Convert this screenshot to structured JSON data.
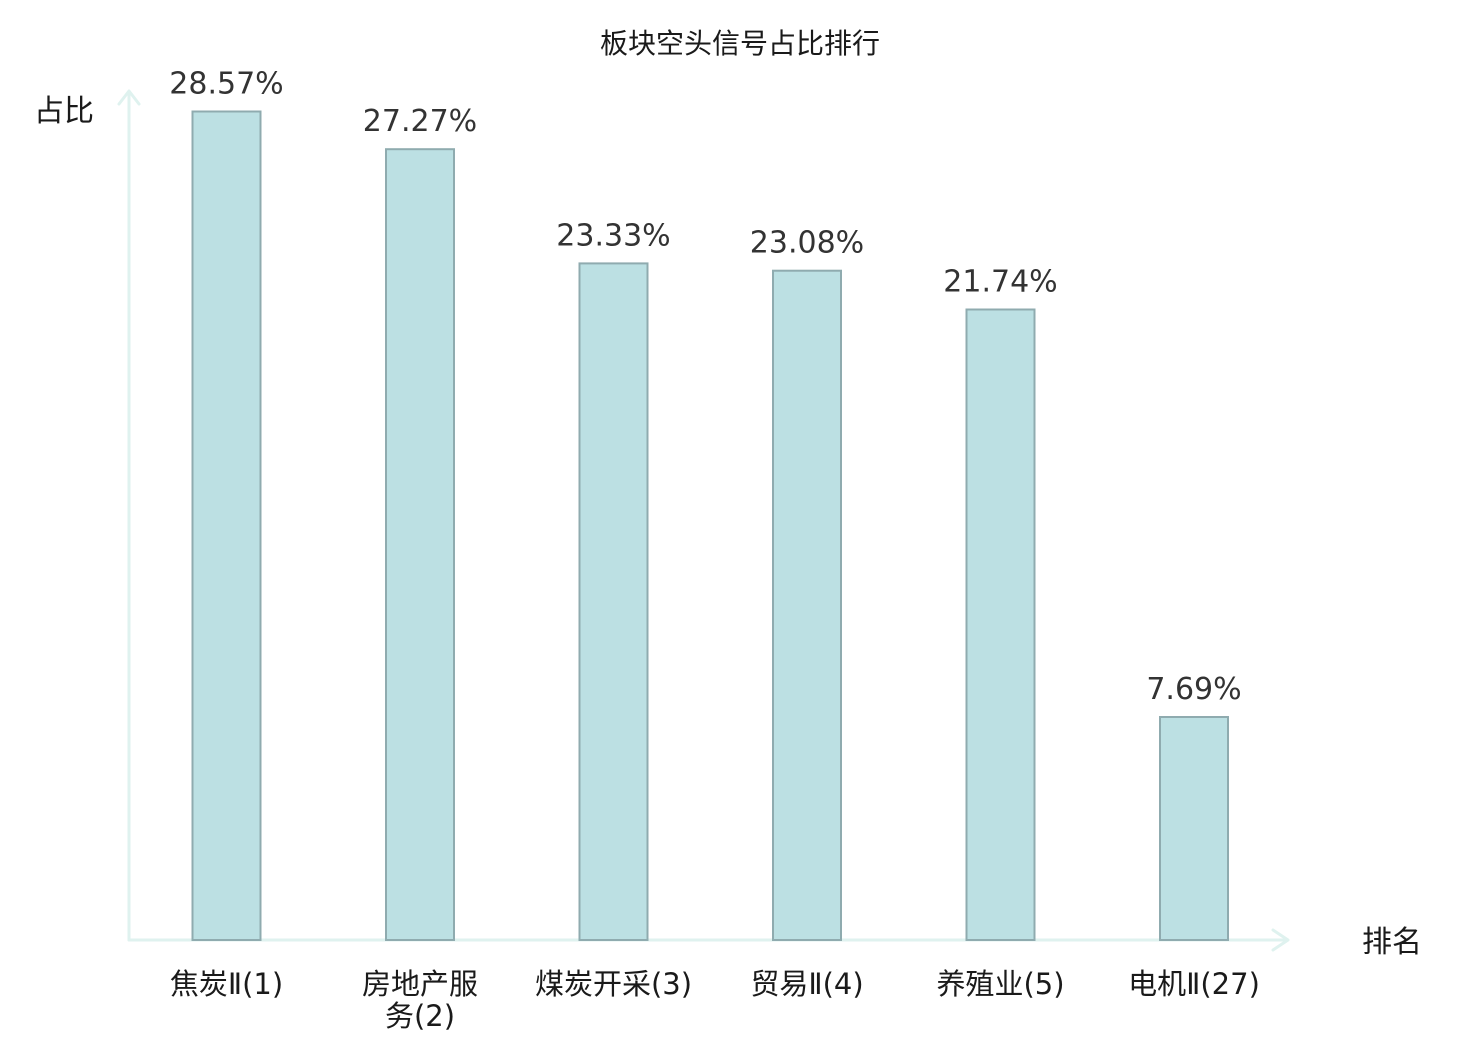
{
  "chart_data": {
    "type": "bar",
    "title": "板块空头信号占比排行",
    "ylabel": "占比",
    "xlabel": "排名",
    "ylim": [
      0,
      30
    ],
    "grid": false,
    "legend": "none",
    "categories": [
      "焦炭Ⅱ(1)",
      "房地产服务(2)",
      "煤炭开采(3)",
      "贸易Ⅱ(4)",
      "养殖业(5)",
      "电机Ⅱ(27)"
    ],
    "category_lines": [
      [
        "焦炭Ⅱ(1)"
      ],
      [
        "房地产服",
        "务(2)"
      ],
      [
        "煤炭开采(3)"
      ],
      [
        "贸易Ⅱ(4)"
      ],
      [
        "养殖业(5)"
      ],
      [
        "电机Ⅱ(27)"
      ]
    ],
    "values": [
      28.57,
      27.27,
      23.33,
      23.08,
      21.74,
      7.69
    ],
    "value_labels": [
      "28.57%",
      "27.27%",
      "23.33%",
      "23.08%",
      "21.74%",
      "7.69%"
    ],
    "highlight_index": 5
  },
  "colors": {
    "bar_fill": "#bce0e3",
    "bar_stroke": "#8fabaf",
    "axis": "#dff2ef",
    "text": "#1a1a1a",
    "value_text": "#333333",
    "highlight_text": "#e8221c"
  }
}
